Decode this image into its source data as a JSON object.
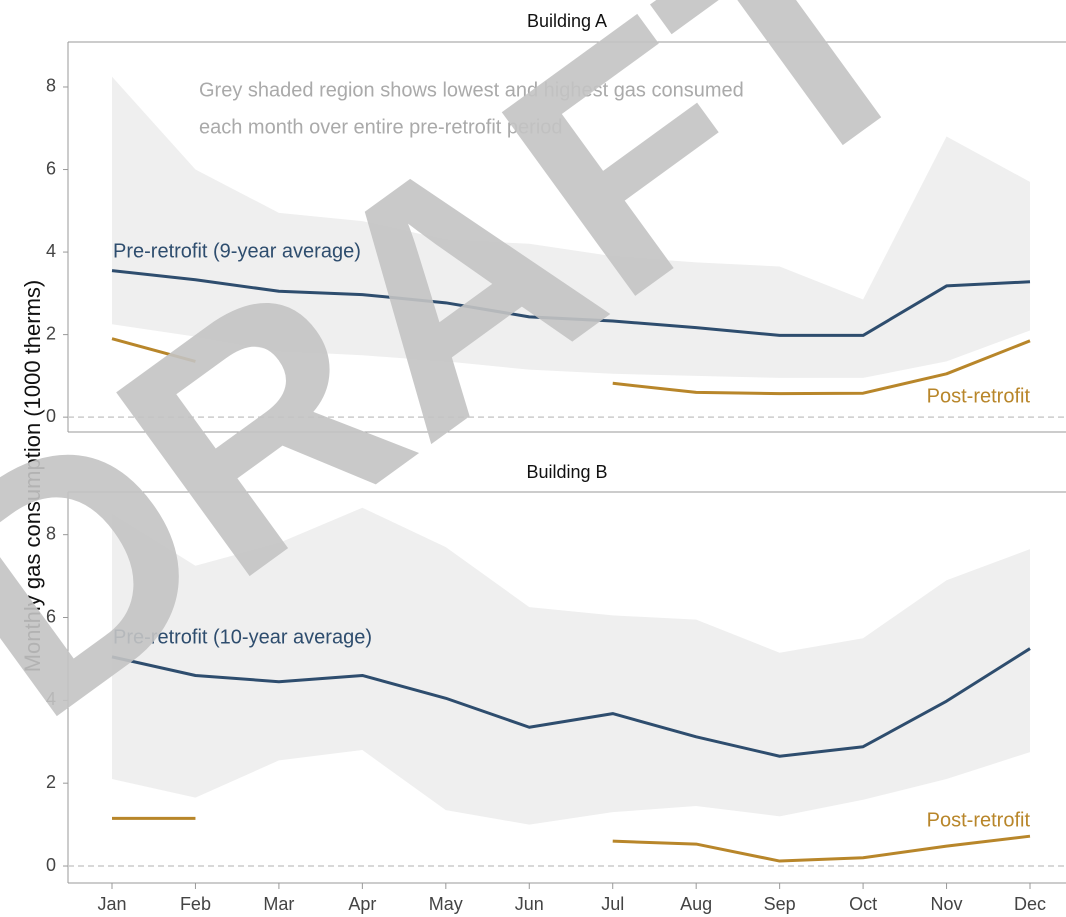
{
  "chart_data": [
    {
      "type": "line",
      "title": "Building A",
      "ylabel": "Monthly gas consumption (1000 therms)",
      "annotation": [
        "Grey shaded region shows lowest and highest gas consumed",
        "each month over entire pre-retrofit period"
      ],
      "ylim": [
        -0.36,
        9.09
      ],
      "yticks": [
        0,
        2,
        4,
        6,
        8
      ],
      "reference_line": 0,
      "band": {
        "color": "#efefef",
        "high": [
          8.25,
          6.0,
          4.95,
          4.75,
          4.3,
          4.2,
          3.9,
          3.75,
          3.65,
          2.85,
          6.8,
          5.7
        ],
        "low": [
          2.25,
          1.95,
          1.6,
          1.5,
          1.35,
          1.15,
          1.05,
          1.0,
          0.95,
          0.95,
          1.35,
          2.1
        ]
      },
      "series": [
        {
          "name": "Pre-retrofit (9-year average)",
          "color": "#2e4d6e",
          "values": [
            3.55,
            3.33,
            3.05,
            2.97,
            2.77,
            2.43,
            2.33,
            2.17,
            1.98,
            1.98,
            3.18,
            3.28
          ]
        },
        {
          "name": "Post-retrofit",
          "color": "#b8862a",
          "values": [
            1.9,
            1.35,
            null,
            null,
            null,
            null,
            0.82,
            0.6,
            0.57,
            0.58,
            1.05,
            1.85
          ]
        }
      ]
    },
    {
      "type": "line",
      "title": "Building B",
      "categories": [
        "Jan",
        "Feb",
        "Mar",
        "Apr",
        "May",
        "Jun",
        "Jul",
        "Aug",
        "Sep",
        "Oct",
        "Nov",
        "Dec"
      ],
      "ylim": [
        -0.41,
        9.03
      ],
      "yticks": [
        0,
        2,
        4,
        6,
        8
      ],
      "reference_line": 0,
      "band": {
        "color": "#efefef",
        "high": [
          8.5,
          7.25,
          7.8,
          8.65,
          7.7,
          6.25,
          6.05,
          5.95,
          5.15,
          5.5,
          6.9,
          7.65
        ],
        "low": [
          2.1,
          1.65,
          2.55,
          2.8,
          1.35,
          1.0,
          1.3,
          1.45,
          1.2,
          1.6,
          2.1,
          2.75
        ]
      },
      "series": [
        {
          "name": "Pre-retrofit (10-year average)",
          "color": "#2e4d6e",
          "values": [
            5.05,
            4.6,
            4.45,
            4.6,
            4.05,
            3.35,
            3.68,
            3.12,
            2.65,
            2.88,
            3.98,
            5.25
          ]
        },
        {
          "name": "Post-retrofit",
          "color": "#b8862a",
          "values": [
            1.15,
            1.15,
            null,
            null,
            null,
            null,
            0.6,
            0.53,
            0.12,
            0.2,
            0.48,
            0.72
          ]
        }
      ]
    }
  ],
  "watermark": "DRAFT"
}
